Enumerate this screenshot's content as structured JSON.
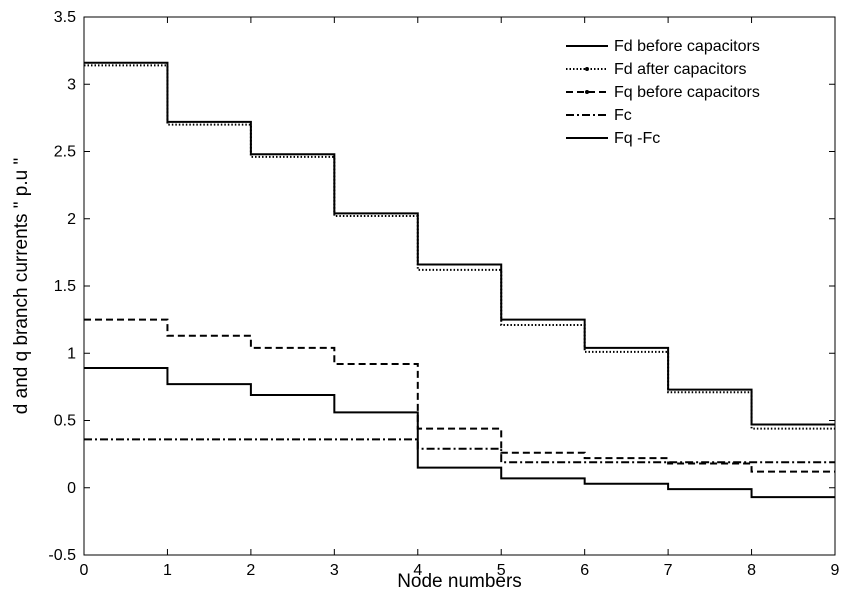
{
  "chart_data": {
    "type": "line",
    "step": "post",
    "xlabel": "Node numbers",
    "ylabel": "d and q branch currents  \" p.u \"",
    "xlim": [
      0,
      9
    ],
    "ylim": [
      -0.5,
      3.5
    ],
    "xticks": [
      "0",
      "1",
      "2",
      "3",
      "4",
      "5",
      "6",
      "7",
      "8",
      "9"
    ],
    "yticks": [
      "-0.5",
      "0",
      "0.5",
      "1",
      "1.5",
      "2",
      "2.5",
      "3",
      "3.5"
    ],
    "grid": false,
    "legend_position": "top-right",
    "x": [
      0,
      1,
      2,
      3,
      4,
      5,
      6,
      7,
      8,
      9
    ],
    "series": [
      {
        "name": "Fd before capacitors",
        "style": "solid",
        "color": "#000000",
        "values": [
          3.16,
          2.72,
          2.48,
          2.04,
          1.66,
          1.25,
          1.04,
          0.73,
          0.47,
          0.47
        ]
      },
      {
        "name": "Fd after capacitors",
        "style": "dotted",
        "color": "#000000",
        "values": [
          3.14,
          2.7,
          2.46,
          2.02,
          1.62,
          1.21,
          1.01,
          0.71,
          0.44,
          0.44
        ]
      },
      {
        "name": "Fq before capacitors",
        "style": "dashed",
        "color": "#000000",
        "values": [
          1.25,
          1.13,
          1.04,
          0.92,
          0.44,
          0.26,
          0.22,
          0.18,
          0.12,
          0.12
        ]
      },
      {
        "name": "Fc",
        "style": "dashdot",
        "color": "#000000",
        "values": [
          0.36,
          0.36,
          0.36,
          0.36,
          0.29,
          0.19,
          0.19,
          0.19,
          0.19,
          0.19
        ]
      },
      {
        "name": "Fq -Fc",
        "style": "solid",
        "color": "#000000",
        "values": [
          0.89,
          0.77,
          0.69,
          0.56,
          0.15,
          0.07,
          0.03,
          -0.01,
          -0.07,
          -0.07
        ]
      }
    ]
  }
}
